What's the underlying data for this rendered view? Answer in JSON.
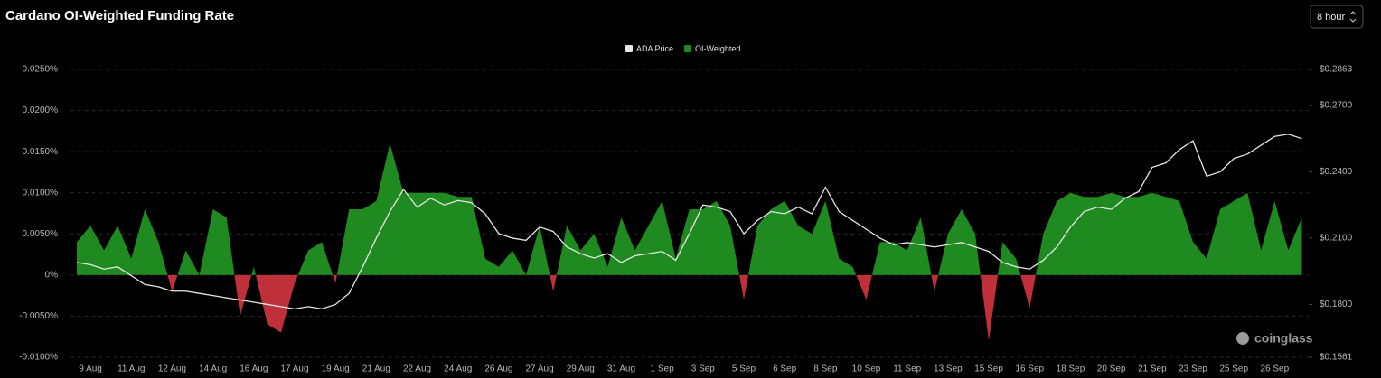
{
  "header": {
    "title": "Cardano OI-Weighted Funding Rate",
    "interval": "8 hour"
  },
  "watermark": "coinglass",
  "chart_data": {
    "type": "area",
    "legend": "top",
    "grid": true,
    "categories": [
      null,
      "9 Aug",
      null,
      null,
      "11 Aug",
      null,
      null,
      "12 Aug",
      null,
      null,
      "14 Aug",
      null,
      null,
      "16 Aug",
      null,
      null,
      "17 Aug",
      null,
      null,
      "19 Aug",
      null,
      null,
      "21 Aug",
      null,
      null,
      "22 Aug",
      null,
      null,
      "24 Aug",
      null,
      null,
      "26 Aug",
      null,
      null,
      "27 Aug",
      null,
      null,
      "29 Aug",
      null,
      null,
      "31 Aug",
      null,
      null,
      "1 Sep",
      null,
      null,
      "3 Sep",
      null,
      null,
      "5 Sep",
      null,
      null,
      "6 Sep",
      null,
      null,
      "8 Sep",
      null,
      null,
      "10 Sep",
      null,
      null,
      "11 Sep",
      null,
      null,
      "13 Sep",
      null,
      null,
      "15 Sep",
      null,
      null,
      "16 Sep",
      null,
      null,
      "18 Sep",
      null,
      null,
      "20 Sep",
      null,
      null,
      "21 Sep",
      null,
      null,
      "23 Sep",
      null,
      null,
      "25 Sep",
      null,
      null,
      "26 Sep",
      null,
      null
    ],
    "series": [
      {
        "name": "ADA Price",
        "color": "#e6e6e6",
        "axis": "y2",
        "type": "line",
        "values": [
          0.199,
          0.198,
          0.196,
          0.197,
          0.193,
          0.189,
          0.188,
          0.186,
          0.186,
          0.185,
          0.184,
          0.183,
          0.182,
          0.181,
          0.18,
          0.179,
          0.178,
          0.179,
          0.178,
          0.18,
          0.185,
          0.197,
          0.21,
          0.222,
          0.232,
          0.224,
          0.228,
          0.225,
          0.227,
          0.226,
          0.221,
          0.212,
          0.21,
          0.209,
          0.215,
          0.213,
          0.206,
          0.203,
          0.201,
          0.203,
          0.199,
          0.202,
          0.203,
          0.204,
          0.2,
          0.212,
          0.225,
          0.224,
          0.222,
          0.212,
          0.218,
          0.222,
          0.221,
          0.224,
          0.221,
          0.233,
          0.222,
          0.218,
          0.214,
          0.21,
          0.207,
          0.208,
          0.207,
          0.206,
          0.207,
          0.208,
          0.206,
          0.204,
          0.199,
          0.197,
          0.196,
          0.2,
          0.206,
          0.215,
          0.222,
          0.224,
          0.223,
          0.228,
          0.231,
          0.242,
          0.244,
          0.25,
          0.254,
          0.238,
          0.24,
          0.246,
          0.248,
          0.252,
          0.256,
          0.257,
          0.255
        ]
      },
      {
        "name": "OI-Weighted",
        "color": "#1f8a1f",
        "negative_color": "#c0303b",
        "type": "area",
        "values": [
          0.004,
          0.006,
          0.003,
          0.006,
          0.002,
          0.008,
          0.004,
          -0.002,
          0.003,
          0.0,
          0.008,
          0.007,
          -0.005,
          0.001,
          -0.006,
          -0.007,
          -0.001,
          0.003,
          0.004,
          -0.001,
          0.008,
          0.008,
          0.009,
          0.016,
          0.01,
          0.01,
          0.01,
          0.01,
          0.0095,
          0.0095,
          0.002,
          0.001,
          0.003,
          0.0,
          0.006,
          -0.002,
          0.006,
          0.003,
          0.005,
          0.001,
          0.007,
          0.003,
          0.006,
          0.009,
          0.002,
          0.008,
          0.008,
          0.009,
          0.006,
          -0.003,
          0.006,
          0.008,
          0.009,
          0.006,
          0.005,
          0.009,
          0.002,
          0.001,
          -0.003,
          0.004,
          0.004,
          0.003,
          0.007,
          -0.002,
          0.005,
          0.008,
          0.005,
          -0.008,
          0.004,
          0.002,
          -0.004,
          0.005,
          0.009,
          0.01,
          0.0095,
          0.0095,
          0.01,
          0.0095,
          0.0095,
          0.01,
          0.0095,
          0.009,
          0.004,
          0.002,
          0.008,
          0.009,
          0.01,
          0.003,
          0.009,
          0.003,
          0.007
        ]
      }
    ],
    "ylim": [
      -0.01,
      0.025
    ],
    "yticks": [
      {
        "value": -0.01,
        "label": "-0.0100%"
      },
      {
        "value": -0.005,
        "label": "-0.0050%"
      },
      {
        "value": 0,
        "label": "0%"
      },
      {
        "value": 0.005,
        "label": "0.0050%"
      },
      {
        "value": 0.01,
        "label": "0.0100%"
      },
      {
        "value": 0.015,
        "label": "0.0150%"
      },
      {
        "value": 0.02,
        "label": "0.0200%"
      },
      {
        "value": 0.025,
        "label": "0.0250%"
      }
    ],
    "y2lim": [
      0.1561,
      0.2863
    ],
    "y2ticks": [
      {
        "value": 0.1561,
        "label": "$0.1561"
      },
      {
        "value": 0.18,
        "label": "$0.1800"
      },
      {
        "value": 0.21,
        "label": "$0.2100"
      },
      {
        "value": 0.24,
        "label": "$0.2400"
      },
      {
        "value": 0.27,
        "label": "$0.2700"
      },
      {
        "value": 0.2863,
        "label": "$0.2863"
      }
    ]
  }
}
